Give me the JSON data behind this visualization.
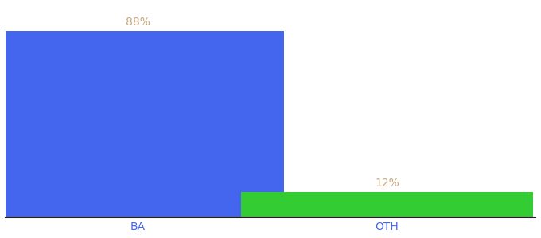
{
  "categories": [
    "BA",
    "OTH"
  ],
  "values": [
    88,
    12
  ],
  "bar_colors": [
    "#4466ee",
    "#33cc33"
  ],
  "label_texts": [
    "88%",
    "12%"
  ],
  "label_color": "#c8a882",
  "ylabel": "",
  "ylim": [
    0,
    100
  ],
  "background_color": "#ffffff",
  "bar_width": 0.55,
  "x_positions": [
    0.25,
    0.72
  ],
  "xlim": [
    0,
    1
  ],
  "tick_fontsize": 10,
  "annotation_fontsize": 10,
  "tick_color": "#4466ee"
}
